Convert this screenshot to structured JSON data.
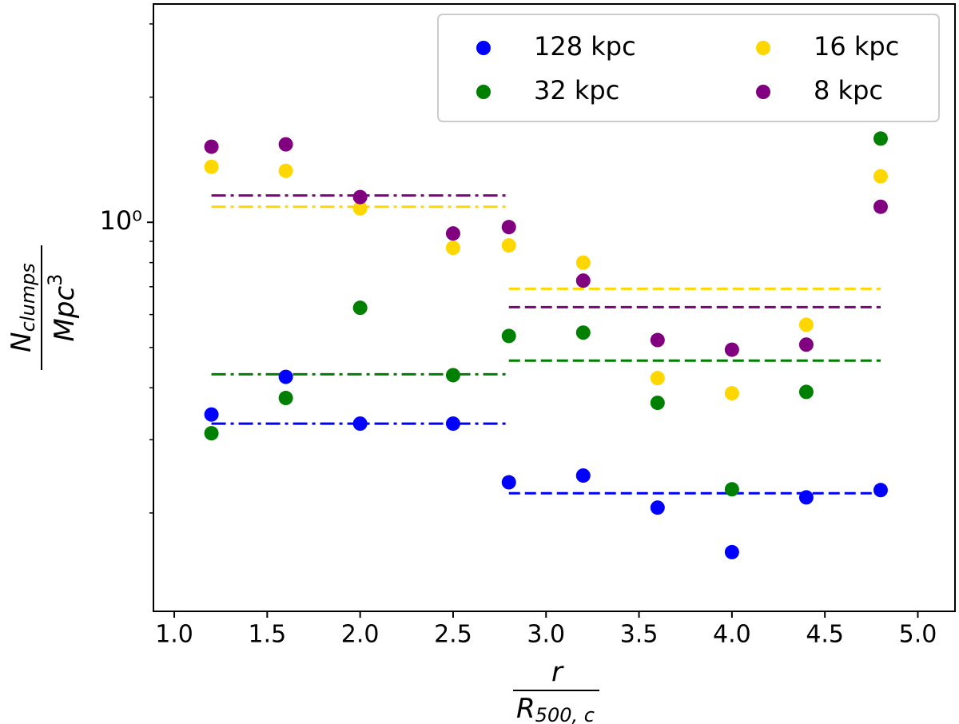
{
  "chart_data": {
    "type": "scatter",
    "ylabel": {
      "numerator": "N",
      "numerator_sub": "clumps",
      "denominator": "Mpc",
      "denominator_sup": "3"
    },
    "xlabel": {
      "numerator": "r",
      "denominator": "R",
      "denominator_sub": "500, c"
    },
    "x": [
      1.2,
      1.6,
      2.0,
      2.5,
      2.8,
      3.2,
      3.6,
      4.0,
      4.4,
      4.8
    ],
    "series": [
      {
        "name": "128 kpc",
        "color": "#0000ff",
        "values": [
          0.345,
          0.425,
          0.328,
          0.328,
          0.237,
          0.246,
          0.206,
          0.161,
          0.218,
          0.227
        ]
      },
      {
        "name": "32 kpc",
        "color": "#008000",
        "values": [
          0.311,
          0.378,
          0.623,
          0.429,
          0.533,
          0.543,
          0.368,
          0.228,
          0.391,
          1.59
        ]
      },
      {
        "name": "16 kpc",
        "color": "#ffd700",
        "values": [
          1.36,
          1.33,
          1.08,
          0.868,
          0.88,
          0.8,
          0.422,
          0.388,
          0.567,
          1.29
        ]
      },
      {
        "name": "8 kpc",
        "color": "#800080",
        "values": [
          1.52,
          1.54,
          1.15,
          0.94,
          0.974,
          0.724,
          0.521,
          0.494,
          0.508,
          1.09
        ]
      }
    ],
    "mean_lines": [
      {
        "color": "#800080",
        "dash": "dashdot",
        "x": [
          1.2,
          2.8
        ],
        "y": 1.16
      },
      {
        "color": "#ffd700",
        "dash": "dashdot",
        "x": [
          1.2,
          2.8
        ],
        "y": 1.09
      },
      {
        "color": "#008000",
        "dash": "dashdot",
        "x": [
          1.2,
          2.8
        ],
        "y": 0.431
      },
      {
        "color": "#0000ff",
        "dash": "dashdot",
        "x": [
          1.2,
          2.8
        ],
        "y": 0.328
      },
      {
        "color": "#ffd700",
        "dash": "dashed",
        "x": [
          2.8,
          4.8
        ],
        "y": 0.692
      },
      {
        "color": "#800080",
        "dash": "dashed",
        "x": [
          2.8,
          4.8
        ],
        "y": 0.625
      },
      {
        "color": "#008000",
        "dash": "dashed",
        "x": [
          2.8,
          4.8
        ],
        "y": 0.465
      },
      {
        "color": "#0000ff",
        "dash": "dashed",
        "x": [
          2.8,
          4.8
        ],
        "y": 0.223
      }
    ],
    "xlim": [
      0.888,
      5.2
    ],
    "xticks": [
      {
        "value": 1,
        "label": "1.0"
      },
      1.5,
      {
        "value": 2,
        "label": "2.0"
      },
      2.5,
      {
        "value": 3,
        "label": "3.0"
      },
      3.5,
      {
        "value": 4,
        "label": "4.0"
      },
      4.5,
      {
        "value": 5,
        "label": "5.0"
      }
    ],
    "ylim": [
      0.116,
      3.35
    ],
    "yscale": "log",
    "yticks": [
      {
        "value": 1,
        "label": "10⁰"
      }
    ],
    "yminorticks": [
      0.2,
      0.3,
      0.4,
      0.5,
      0.6,
      0.7,
      0.8,
      0.9,
      2,
      3
    ],
    "legend": {
      "loc": "upper right",
      "columns": 2
    }
  }
}
